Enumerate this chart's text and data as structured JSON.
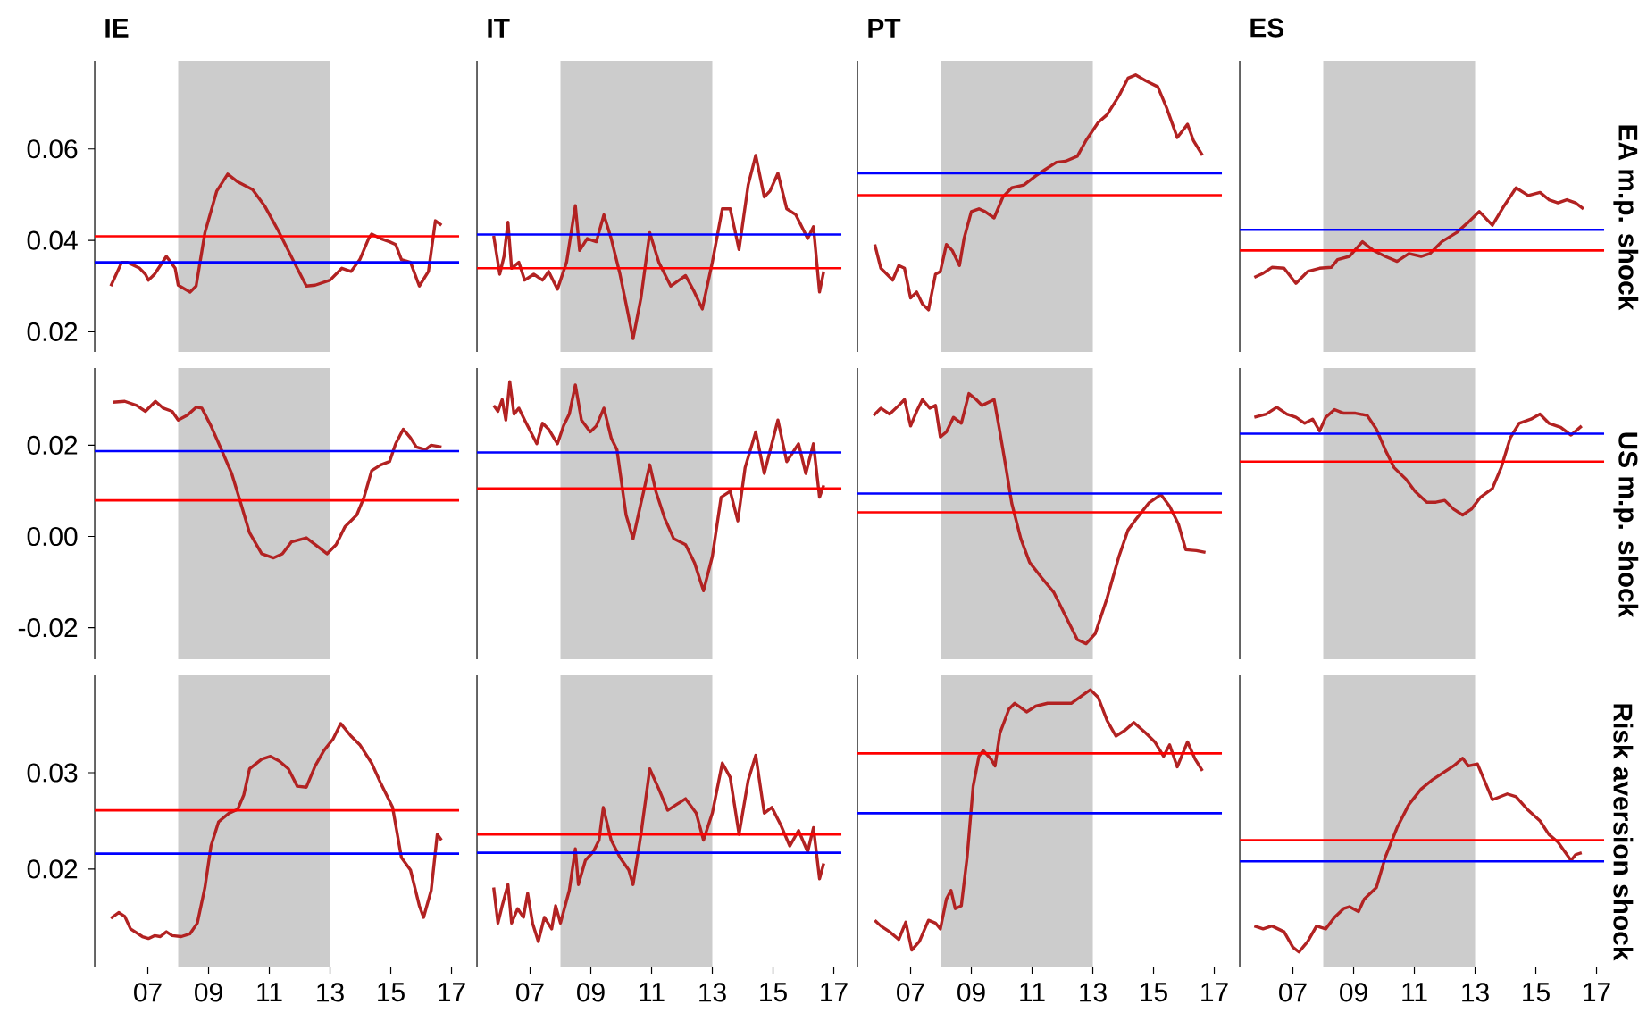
{
  "chart_data": [
    {
      "type": "line",
      "title": "IE",
      "x": [
        2005.78,
        2006.14,
        2006.33,
        2006.73,
        2006.92,
        2007.02,
        2007.22,
        2007.61,
        2007.9,
        2008.0,
        2008.39,
        2008.59,
        2008.88,
        2009.27,
        2009.63,
        2009.96,
        2010.45,
        2010.84,
        2011.33,
        2011.82,
        2012.22,
        2012.51,
        2013.0,
        2013.39,
        2013.69,
        2013.98,
        2014.27,
        2014.37,
        2014.67,
        2014.96,
        2015.16,
        2015.35,
        2015.65,
        2015.94,
        2016.24,
        2016.47,
        2016.67
      ],
      "series": [
        {
          "color": "#b22222",
          "values": [
            0.03,
            0.0352,
            0.0352,
            0.0339,
            0.0326,
            0.0313,
            0.0326,
            0.0365,
            0.0339,
            0.0302,
            0.0287,
            0.03,
            0.0417,
            0.0508,
            0.0545,
            0.0528,
            0.0511,
            0.0476,
            0.0417,
            0.0352,
            0.03,
            0.0302,
            0.0313,
            0.0339,
            0.0332,
            0.0358,
            0.0404,
            0.0414,
            0.0404,
            0.0397,
            0.0391,
            0.0358,
            0.0352,
            0.03,
            0.0332,
            0.0443,
            0.0433
          ]
        }
      ],
      "xlim": [
        2005.25,
        2017.25
      ],
      "ylim": [
        0.0156,
        0.0793
      ],
      "yticks": [
        0.02,
        0.04,
        0.06
      ],
      "tick_labels": "y",
      "ref_lines": [
        {
          "axis": "y",
          "value": 0.0409,
          "color": "#ff0000"
        },
        {
          "axis": "y",
          "value": 0.0352,
          "color": "#0000ff"
        }
      ],
      "bands": [
        {
          "axis": "x",
          "from": 2008,
          "to": 2013,
          "color": "#cccccc"
        }
      ]
    },
    {
      "type": "line",
      "title": "IT",
      "x": [
        2005.8,
        2006.0,
        2006.14,
        2006.27,
        2006.39,
        2006.63,
        2006.82,
        2007.12,
        2007.41,
        2007.61,
        2007.9,
        2008.2,
        2008.49,
        2008.63,
        2008.88,
        2009.18,
        2009.43,
        2009.67,
        2009.96,
        2010.16,
        2010.39,
        2010.65,
        2010.94,
        2011.24,
        2011.63,
        2012.12,
        2012.41,
        2012.67,
        2013.0,
        2013.33,
        2013.59,
        2013.88,
        2014.18,
        2014.43,
        2014.71,
        2014.9,
        2015.16,
        2015.45,
        2015.75,
        2016.14,
        2016.33,
        2016.53,
        2016.67
      ],
      "series": [
        {
          "color": "#b22222",
          "values": [
            0.041,
            0.0326,
            0.0365,
            0.044,
            0.0339,
            0.0352,
            0.0313,
            0.0326,
            0.0313,
            0.0332,
            0.0293,
            0.0352,
            0.0476,
            0.0378,
            0.0404,
            0.0397,
            0.0456,
            0.0404,
            0.0326,
            0.0261,
            0.0185,
            0.0274,
            0.0417,
            0.0352,
            0.03,
            0.0323,
            0.0287,
            0.025,
            0.0352,
            0.0469,
            0.0469,
            0.038,
            0.0521,
            0.0586,
            0.0495,
            0.0508,
            0.0547,
            0.0469,
            0.0456,
            0.0404,
            0.043,
            0.0287,
            0.0332
          ]
        }
      ],
      "xlim": [
        2005.25,
        2017.25
      ],
      "ylim": [
        0.0156,
        0.0793
      ],
      "tick_labels": false,
      "ref_lines": [
        {
          "axis": "y",
          "value": 0.0413,
          "color": "#0000ff"
        },
        {
          "axis": "y",
          "value": 0.0339,
          "color": "#ff0000"
        }
      ],
      "bands": [
        {
          "axis": "x",
          "from": 2008,
          "to": 2013,
          "color": "#cccccc"
        }
      ]
    },
    {
      "type": "line",
      "title": "PT",
      "x": [
        2005.82,
        2006.02,
        2006.22,
        2006.41,
        2006.61,
        2006.8,
        2007.0,
        2007.2,
        2007.39,
        2007.59,
        2007.82,
        2007.98,
        2008.18,
        2008.37,
        2008.61,
        2008.76,
        2009.0,
        2009.25,
        2009.45,
        2009.75,
        2010.04,
        2010.33,
        2010.73,
        2011.12,
        2011.41,
        2011.8,
        2012.1,
        2012.49,
        2012.78,
        2013.18,
        2013.47,
        2013.86,
        2014.16,
        2014.41,
        2014.75,
        2015.14,
        2015.43,
        2015.78,
        2016.12,
        2016.31,
        2016.61
      ],
      "series": [
        {
          "color": "#b22222",
          "values": [
            0.0391,
            0.0339,
            0.0326,
            0.0313,
            0.0345,
            0.0339,
            0.0274,
            0.0287,
            0.0261,
            0.0248,
            0.0326,
            0.0332,
            0.0391,
            0.0378,
            0.0345,
            0.0404,
            0.0463,
            0.0469,
            0.0463,
            0.0449,
            0.0495,
            0.0515,
            0.0521,
            0.0541,
            0.0554,
            0.0571,
            0.0573,
            0.0584,
            0.0619,
            0.0658,
            0.0675,
            0.0716,
            0.0755,
            0.0762,
            0.0749,
            0.0736,
            0.069,
            0.0625,
            0.0654,
            0.0619,
            0.0586
          ]
        }
      ],
      "xlim": [
        2005.25,
        2017.25
      ],
      "ylim": [
        0.0156,
        0.0793
      ],
      "tick_labels": false,
      "ref_lines": [
        {
          "axis": "y",
          "value": 0.0547,
          "color": "#0000ff"
        },
        {
          "axis": "y",
          "value": 0.0499,
          "color": "#ff0000"
        }
      ],
      "bands": [
        {
          "axis": "x",
          "from": 2008,
          "to": 2013,
          "color": "#cccccc"
        }
      ]
    },
    {
      "type": "line",
      "title": "ES",
      "ylabel": "EA m.p. shock",
      "x": [
        2005.73,
        2006.02,
        2006.31,
        2006.71,
        2007.1,
        2007.49,
        2007.88,
        2008.27,
        2008.47,
        2008.86,
        2009.29,
        2009.65,
        2010.04,
        2010.43,
        2010.82,
        2011.22,
        2011.51,
        2011.9,
        2012.39,
        2012.78,
        2013.14,
        2013.57,
        2013.96,
        2014.35,
        2014.75,
        2015.14,
        2015.43,
        2015.73,
        2016.02,
        2016.31,
        2016.57
      ],
      "series": [
        {
          "color": "#b22222",
          "values": [
            0.0319,
            0.0328,
            0.0341,
            0.0339,
            0.0306,
            0.0332,
            0.0339,
            0.0341,
            0.0358,
            0.0365,
            0.0397,
            0.0378,
            0.0365,
            0.0354,
            0.0371,
            0.0365,
            0.0371,
            0.0397,
            0.0417,
            0.044,
            0.0463,
            0.0433,
            0.0476,
            0.0515,
            0.0498,
            0.0505,
            0.0489,
            0.0482,
            0.0489,
            0.0482,
            0.0469
          ]
        }
      ],
      "xlim": [
        2005.25,
        2017.25
      ],
      "ylim": [
        0.0156,
        0.0793
      ],
      "tick_labels": false,
      "ref_lines": [
        {
          "axis": "y",
          "value": 0.0423,
          "color": "#0000ff"
        },
        {
          "axis": "y",
          "value": 0.0378,
          "color": "#ff0000"
        }
      ],
      "bands": [
        {
          "axis": "x",
          "from": 2008,
          "to": 2013,
          "color": "#cccccc"
        }
      ]
    },
    {
      "type": "line",
      "x": [
        2005.84,
        2006.24,
        2006.63,
        2006.92,
        2007.25,
        2007.51,
        2007.8,
        2008.0,
        2008.29,
        2008.59,
        2008.78,
        2009.08,
        2009.47,
        2009.76,
        2010.06,
        2010.35,
        2010.75,
        2011.14,
        2011.43,
        2011.73,
        2012.22,
        2012.51,
        2012.9,
        2013.2,
        2013.49,
        2013.88,
        2014.12,
        2014.37,
        2014.67,
        2014.96,
        2015.16,
        2015.41,
        2015.65,
        2015.84,
        2016.14,
        2016.33,
        2016.67
      ],
      "series": [
        {
          "color": "#b22222",
          "values": [
            0.0294,
            0.0296,
            0.0287,
            0.0274,
            0.0296,
            0.0281,
            0.0274,
            0.0255,
            0.0265,
            0.0283,
            0.0281,
            0.0242,
            0.0183,
            0.0138,
            0.0073,
            0.0008,
            -0.0038,
            -0.0047,
            -0.0038,
            -0.0012,
            -0.0003,
            -0.0018,
            -0.0038,
            -0.0018,
            0.0021,
            0.0047,
            0.0086,
            0.0144,
            0.0157,
            0.0164,
            0.0203,
            0.0235,
            0.0216,
            0.0196,
            0.019,
            0.02,
            0.0196
          ]
        }
      ],
      "xlim": [
        2005.25,
        2017.25
      ],
      "ylim": [
        -0.0269,
        0.0369
      ],
      "yticks": [
        -0.02,
        {
          "value": 0,
          "label": "0.00"
        },
        0.02
      ],
      "tick_labels": "y",
      "ref_lines": [
        {
          "axis": "y",
          "value": 0.0187,
          "color": "#0000ff"
        },
        {
          "axis": "y",
          "value": 0.0079,
          "color": "#ff0000"
        }
      ],
      "bands": [
        {
          "axis": "x",
          "from": 2008,
          "to": 2013,
          "color": "#cccccc"
        }
      ]
    },
    {
      "type": "line",
      "x": [
        2005.8,
        2005.94,
        2006.08,
        2006.2,
        2006.33,
        2006.47,
        2006.63,
        2006.82,
        2007.02,
        2007.22,
        2007.41,
        2007.61,
        2007.9,
        2008.1,
        2008.29,
        2008.49,
        2008.69,
        2008.98,
        2009.18,
        2009.43,
        2009.67,
        2009.86,
        2010.16,
        2010.39,
        2010.65,
        2010.94,
        2011.14,
        2011.43,
        2011.73,
        2012.12,
        2012.41,
        2012.71,
        2013.0,
        2013.29,
        2013.59,
        2013.84,
        2014.08,
        2014.43,
        2014.71,
        2015.16,
        2015.45,
        2015.84,
        2016.08,
        2016.33,
        2016.53,
        2016.67
      ],
      "series": [
        {
          "color": "#b22222",
          "values": [
            0.0287,
            0.0274,
            0.03,
            0.0255,
            0.0339,
            0.0268,
            0.0281,
            0.0255,
            0.0229,
            0.0203,
            0.0248,
            0.0235,
            0.0203,
            0.0242,
            0.0268,
            0.0332,
            0.0255,
            0.0229,
            0.0242,
            0.0281,
            0.0216,
            0.019,
            0.0047,
            -0.0005,
            0.0073,
            0.0157,
            0.0099,
            0.004,
            -0.0005,
            -0.0018,
            -0.0057,
            -0.0119,
            -0.0044,
            0.0086,
            0.0099,
            0.0034,
            0.0151,
            0.0229,
            0.0138,
            0.0255,
            0.0164,
            0.0203,
            0.0138,
            0.0203,
            0.0086,
            0.0112
          ]
        }
      ],
      "xlim": [
        2005.25,
        2017.25
      ],
      "ylim": [
        -0.0269,
        0.0369
      ],
      "tick_labels": false,
      "ref_lines": [
        {
          "axis": "y",
          "value": 0.0184,
          "color": "#0000ff"
        },
        {
          "axis": "y",
          "value": 0.0105,
          "color": "#ff0000"
        }
      ],
      "bands": [
        {
          "axis": "x",
          "from": 2008,
          "to": 2013,
          "color": "#cccccc"
        }
      ]
    },
    {
      "type": "line",
      "x": [
        2005.78,
        2006.02,
        2006.31,
        2006.61,
        2006.8,
        2007.0,
        2007.2,
        2007.39,
        2007.63,
        2007.82,
        2007.98,
        2008.18,
        2008.41,
        2008.67,
        2008.92,
        2009.16,
        2009.35,
        2009.75,
        2009.94,
        2010.14,
        2010.33,
        2010.63,
        2010.92,
        2011.31,
        2011.71,
        2012.1,
        2012.49,
        2012.78,
        2013.08,
        2013.47,
        2013.86,
        2014.16,
        2014.45,
        2014.84,
        2015.24,
        2015.53,
        2015.82,
        2016.06,
        2016.41,
        2016.71
      ],
      "series": [
        {
          "color": "#b22222",
          "values": [
            0.0265,
            0.0281,
            0.0268,
            0.0287,
            0.03,
            0.0242,
            0.0274,
            0.03,
            0.0281,
            0.0287,
            0.0218,
            0.0229,
            0.0261,
            0.0248,
            0.0313,
            0.03,
            0.0287,
            0.03,
            0.0229,
            0.0151,
            0.0073,
            -0.0005,
            -0.0057,
            -0.009,
            -0.0122,
            -0.0174,
            -0.0226,
            -0.0235,
            -0.0213,
            -0.0135,
            -0.0044,
            0.0014,
            0.004,
            0.0073,
            0.0092,
            0.0066,
            0.0027,
            -0.0029,
            -0.0031,
            -0.0035
          ]
        }
      ],
      "xlim": [
        2005.25,
        2017.25
      ],
      "ylim": [
        -0.0269,
        0.0369
      ],
      "tick_labels": false,
      "ref_lines": [
        {
          "axis": "y",
          "value": 0.0094,
          "color": "#0000ff"
        },
        {
          "axis": "y",
          "value": 0.0053,
          "color": "#ff0000"
        }
      ],
      "bands": [
        {
          "axis": "x",
          "from": 2008,
          "to": 2013,
          "color": "#cccccc"
        }
      ]
    },
    {
      "type": "line",
      "ylabel": "US m.p. shock",
      "x": [
        2005.73,
        2006.12,
        2006.47,
        2006.8,
        2007.1,
        2007.39,
        2007.65,
        2007.88,
        2008.08,
        2008.37,
        2008.67,
        2009.06,
        2009.45,
        2009.75,
        2010.04,
        2010.33,
        2010.73,
        2011.02,
        2011.41,
        2011.71,
        2012.0,
        2012.29,
        2012.59,
        2012.88,
        2013.18,
        2013.57,
        2013.86,
        2014.16,
        2014.45,
        2014.84,
        2015.14,
        2015.43,
        2015.82,
        2016.16,
        2016.51
      ],
      "series": [
        {
          "color": "#b22222",
          "values": [
            0.0261,
            0.0268,
            0.0283,
            0.0268,
            0.0261,
            0.0248,
            0.0257,
            0.0231,
            0.0261,
            0.0278,
            0.027,
            0.027,
            0.0265,
            0.0235,
            0.019,
            0.0151,
            0.0125,
            0.0099,
            0.0075,
            0.0075,
            0.0079,
            0.006,
            0.0047,
            0.006,
            0.0086,
            0.0105,
            0.0151,
            0.0216,
            0.0248,
            0.0257,
            0.0268,
            0.0248,
            0.0239,
            0.0222,
            0.0242
          ]
        }
      ],
      "xlim": [
        2005.25,
        2017.25
      ],
      "ylim": [
        -0.0269,
        0.0369
      ],
      "tick_labels": false,
      "ref_lines": [
        {
          "axis": "y",
          "value": 0.0225,
          "color": "#0000ff"
        },
        {
          "axis": "y",
          "value": 0.0164,
          "color": "#ff0000"
        }
      ],
      "bands": [
        {
          "axis": "x",
          "from": 2008,
          "to": 2013,
          "color": "#cccccc"
        }
      ]
    },
    {
      "type": "line",
      "x": [
        2005.78,
        2006.04,
        2006.24,
        2006.43,
        2006.82,
        2007.02,
        2007.22,
        2007.41,
        2007.61,
        2007.8,
        2008.1,
        2008.39,
        2008.63,
        2008.88,
        2009.08,
        2009.33,
        2009.67,
        2009.96,
        2010.16,
        2010.35,
        2010.75,
        2011.04,
        2011.33,
        2011.63,
        2011.92,
        2012.22,
        2012.51,
        2012.8,
        2013.1,
        2013.35,
        2013.69,
        2013.98,
        2014.37,
        2014.67,
        2015.06,
        2015.35,
        2015.65,
        2015.94,
        2016.08,
        2016.33,
        2016.53,
        2016.67
      ],
      "series": [
        {
          "color": "#b22222",
          "values": [
            0.0149,
            0.0155,
            0.0151,
            0.0138,
            0.013,
            0.0128,
            0.0131,
            0.013,
            0.0135,
            0.0131,
            0.013,
            0.0133,
            0.0144,
            0.0181,
            0.0224,
            0.0249,
            0.0258,
            0.0262,
            0.0277,
            0.0304,
            0.0314,
            0.0317,
            0.0312,
            0.0304,
            0.0286,
            0.0285,
            0.0307,
            0.0323,
            0.0335,
            0.0351,
            0.0338,
            0.0329,
            0.031,
            0.0289,
            0.0264,
            0.0212,
            0.0199,
            0.0162,
            0.015,
            0.0178,
            0.0236,
            0.023
          ]
        }
      ],
      "xlim": [
        2005.25,
        2017.25
      ],
      "ylim": [
        0.0099,
        0.0401
      ],
      "xticks": [
        {
          "value": 2007,
          "label": "07"
        },
        {
          "value": 2009,
          "label": "09"
        },
        {
          "value": 2011,
          "label": "11"
        },
        {
          "value": 2013,
          "label": "13"
        },
        {
          "value": 2015,
          "label": "15"
        },
        {
          "value": 2017,
          "label": "17"
        }
      ],
      "yticks": [
        0.02,
        0.03
      ],
      "ref_lines": [
        {
          "axis": "y",
          "value": 0.0261,
          "color": "#ff0000"
        },
        {
          "axis": "y",
          "value": 0.0216,
          "color": "#0000ff"
        }
      ],
      "bands": [
        {
          "axis": "x",
          "from": 2008,
          "to": 2013,
          "color": "#cccccc"
        }
      ]
    },
    {
      "type": "line",
      "x": [
        2005.8,
        2005.94,
        2006.08,
        2006.27,
        2006.39,
        2006.59,
        2006.78,
        2006.92,
        2007.08,
        2007.27,
        2007.47,
        2007.71,
        2007.84,
        2008.0,
        2008.29,
        2008.49,
        2008.59,
        2008.82,
        2009.08,
        2009.27,
        2009.41,
        2009.67,
        2009.96,
        2010.25,
        2010.39,
        2010.65,
        2010.94,
        2011.24,
        2011.53,
        2011.82,
        2012.12,
        2012.47,
        2012.71,
        2013.0,
        2013.33,
        2013.59,
        2013.88,
        2014.18,
        2014.43,
        2014.71,
        2014.96,
        2015.25,
        2015.55,
        2015.84,
        2016.14,
        2016.33,
        2016.53,
        2016.67
      ],
      "series": [
        {
          "color": "#b22222",
          "values": [
            0.0181,
            0.0144,
            0.0162,
            0.0184,
            0.0144,
            0.0159,
            0.015,
            0.0175,
            0.0144,
            0.0125,
            0.015,
            0.0138,
            0.0162,
            0.0144,
            0.0178,
            0.0221,
            0.0184,
            0.0209,
            0.0218,
            0.023,
            0.0264,
            0.023,
            0.0212,
            0.0199,
            0.0184,
            0.0236,
            0.0304,
            0.0283,
            0.0261,
            0.0267,
            0.0273,
            0.0258,
            0.023,
            0.0258,
            0.031,
            0.0295,
            0.0236,
            0.0292,
            0.0318,
            0.0258,
            0.0264,
            0.0246,
            0.0224,
            0.024,
            0.0218,
            0.0243,
            0.019,
            0.0206
          ]
        }
      ],
      "xlim": [
        2005.25,
        2017.25
      ],
      "ylim": [
        0.0099,
        0.0401
      ],
      "xticks": [
        {
          "value": 2007,
          "label": "07"
        },
        {
          "value": 2009,
          "label": "09"
        },
        {
          "value": 2011,
          "label": "11"
        },
        {
          "value": 2013,
          "label": "13"
        },
        {
          "value": 2015,
          "label": "15"
        },
        {
          "value": 2017,
          "label": "17"
        }
      ],
      "tick_labels": "x",
      "ref_lines": [
        {
          "axis": "y",
          "value": 0.0236,
          "color": "#ff0000"
        },
        {
          "axis": "y",
          "value": 0.0217,
          "color": "#0000ff"
        }
      ],
      "bands": [
        {
          "axis": "x",
          "from": 2008,
          "to": 2013,
          "color": "#cccccc"
        }
      ]
    },
    {
      "type": "line",
      "x": [
        2005.82,
        2006.02,
        2006.31,
        2006.61,
        2006.84,
        2007.04,
        2007.29,
        2007.59,
        2007.82,
        2007.98,
        2008.18,
        2008.33,
        2008.47,
        2008.67,
        2008.86,
        2009.06,
        2009.25,
        2009.39,
        2009.65,
        2009.78,
        2009.94,
        2010.24,
        2010.43,
        2010.82,
        2011.12,
        2011.51,
        2011.9,
        2012.29,
        2012.69,
        2012.92,
        2013.18,
        2013.47,
        2013.76,
        2014.06,
        2014.35,
        2014.75,
        2015.04,
        2015.33,
        2015.53,
        2015.78,
        2016.12,
        2016.37,
        2016.61
      ],
      "series": [
        {
          "color": "#b22222",
          "values": [
            0.0147,
            0.0141,
            0.0135,
            0.0127,
            0.0145,
            0.0116,
            0.0125,
            0.0147,
            0.0144,
            0.0138,
            0.0169,
            0.0178,
            0.0159,
            0.0162,
            0.0212,
            0.0286,
            0.0317,
            0.0323,
            0.0314,
            0.0307,
            0.0341,
            0.0366,
            0.0372,
            0.0363,
            0.0369,
            0.0372,
            0.0372,
            0.0372,
            0.0381,
            0.0386,
            0.0378,
            0.0354,
            0.0338,
            0.0344,
            0.0352,
            0.0341,
            0.0332,
            0.0317,
            0.0329,
            0.0306,
            0.0332,
            0.0314,
            0.0302
          ]
        }
      ],
      "xlim": [
        2005.25,
        2017.25
      ],
      "ylim": [
        0.0099,
        0.0401
      ],
      "xticks": [
        {
          "value": 2007,
          "label": "07"
        },
        {
          "value": 2009,
          "label": "09"
        },
        {
          "value": 2011,
          "label": "11"
        },
        {
          "value": 2013,
          "label": "13"
        },
        {
          "value": 2015,
          "label": "15"
        },
        {
          "value": 2017,
          "label": "17"
        }
      ],
      "tick_labels": "x",
      "ref_lines": [
        {
          "axis": "y",
          "value": 0.032,
          "color": "#ff0000"
        },
        {
          "axis": "y",
          "value": 0.0258,
          "color": "#0000ff"
        }
      ],
      "bands": [
        {
          "axis": "x",
          "from": 2008,
          "to": 2013,
          "color": "#cccccc"
        }
      ]
    },
    {
      "type": "line",
      "ylabel": "Risk aversion shock",
      "x": [
        2005.73,
        2006.02,
        2006.31,
        2006.71,
        2007.0,
        2007.2,
        2007.49,
        2007.78,
        2008.08,
        2008.37,
        2008.67,
        2008.86,
        2009.16,
        2009.35,
        2009.75,
        2010.04,
        2010.43,
        2010.82,
        2011.22,
        2011.61,
        2012.0,
        2012.29,
        2012.59,
        2012.78,
        2013.08,
        2013.57,
        2014.06,
        2014.35,
        2014.75,
        2015.14,
        2015.43,
        2015.73,
        2016.16,
        2016.31,
        2016.51
      ],
      "series": [
        {
          "color": "#b22222",
          "values": [
            0.0141,
            0.0138,
            0.0141,
            0.0135,
            0.0119,
            0.0114,
            0.0125,
            0.0141,
            0.0138,
            0.015,
            0.0159,
            0.0161,
            0.0156,
            0.0169,
            0.0181,
            0.0212,
            0.0243,
            0.0267,
            0.0283,
            0.0293,
            0.0301,
            0.0307,
            0.0315,
            0.0307,
            0.0309,
            0.0272,
            0.0278,
            0.0275,
            0.0261,
            0.025,
            0.0236,
            0.0228,
            0.0209,
            0.0215,
            0.0217
          ]
        }
      ],
      "xlim": [
        2005.25,
        2017.25
      ],
      "ylim": [
        0.0099,
        0.0401
      ],
      "xticks": [
        {
          "value": 2007,
          "label": "07"
        },
        {
          "value": 2009,
          "label": "09"
        },
        {
          "value": 2011,
          "label": "11"
        },
        {
          "value": 2013,
          "label": "13"
        },
        {
          "value": 2015,
          "label": "15"
        },
        {
          "value": 2017,
          "label": "17"
        }
      ],
      "tick_labels": "x",
      "ref_lines": [
        {
          "axis": "y",
          "value": 0.023,
          "color": "#ff0000"
        },
        {
          "axis": "y",
          "value": 0.0208,
          "color": "#0000ff"
        }
      ],
      "bands": [
        {
          "axis": "x",
          "from": 2008,
          "to": 2013,
          "color": "#cccccc"
        }
      ]
    }
  ]
}
